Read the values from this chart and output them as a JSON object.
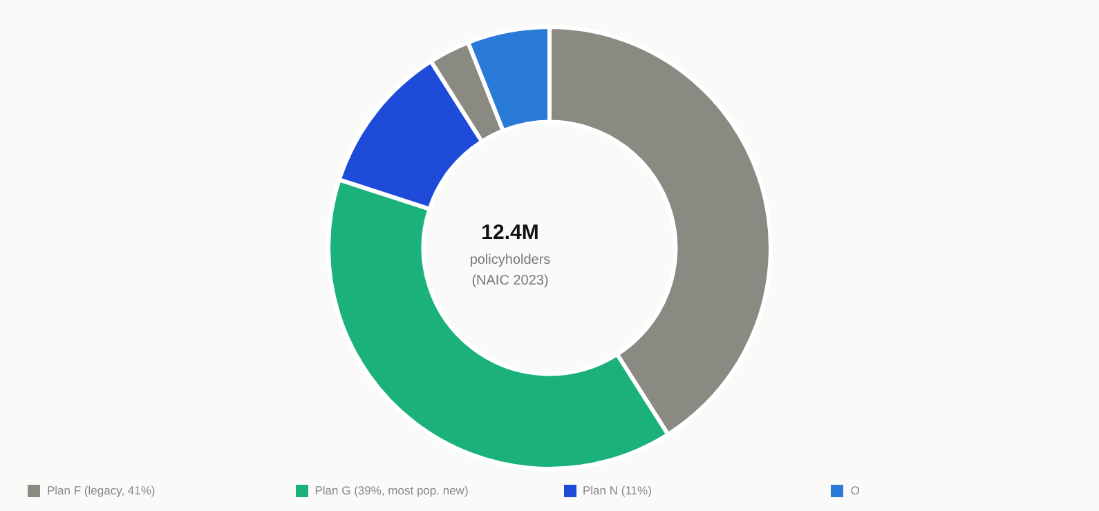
{
  "chart_data": {
    "type": "donut",
    "title": "12.4M",
    "annotations": [
      "policyholders",
      "(NAIC 2023)"
    ],
    "categories": [
      "Plan F (legacy, 41%)",
      "Plan G (39%, most pop. new)",
      "Plan N (11%)",
      null,
      "O"
    ],
    "values": [
      41,
      39,
      11,
      3,
      6
    ],
    "colors": [
      "#8a8a82",
      "#1ab27a",
      "#1e4bd8",
      "#8a8a82",
      "#2a7bd8"
    ],
    "legend": "bottom"
  }
}
